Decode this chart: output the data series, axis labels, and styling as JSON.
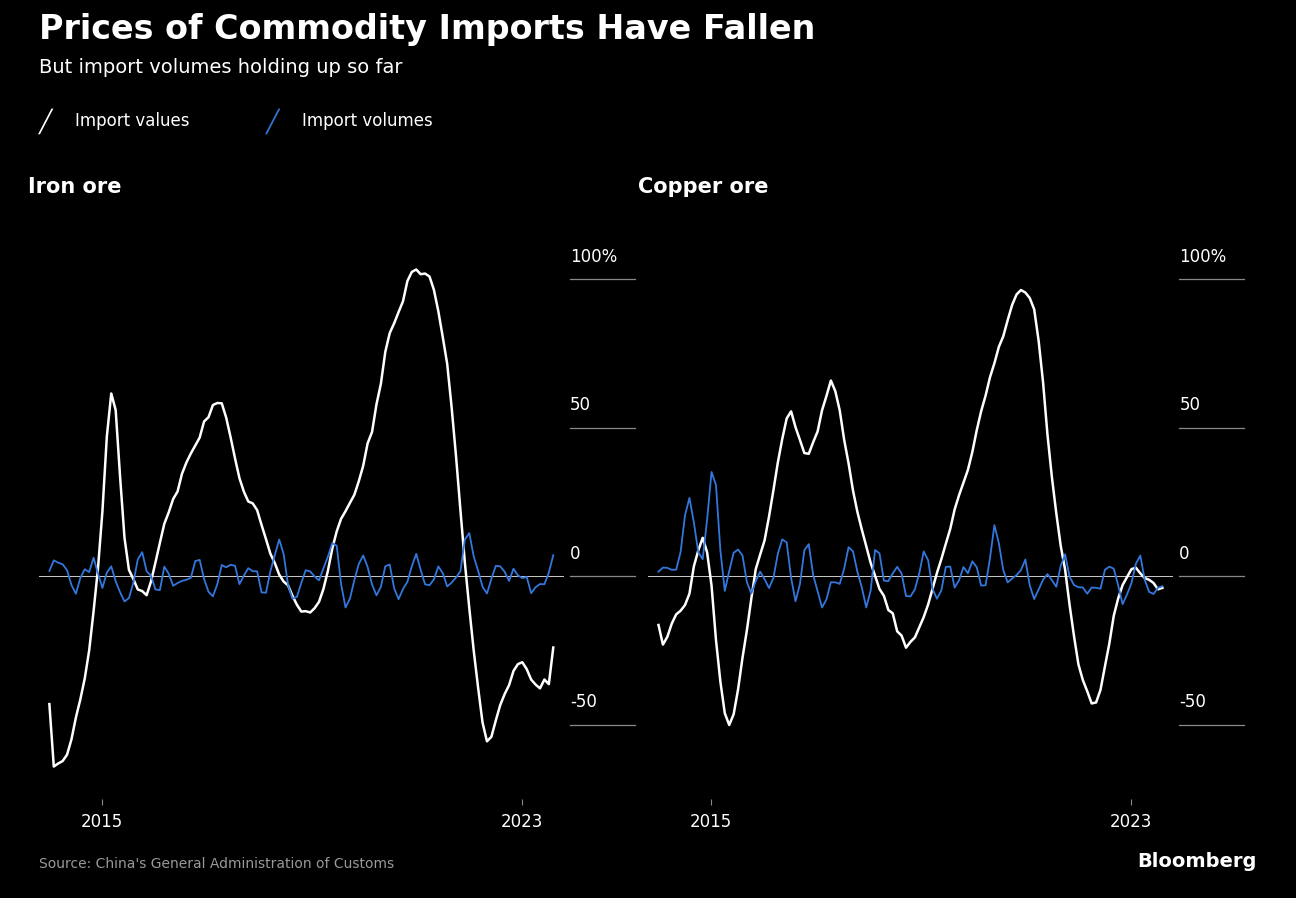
{
  "title": "Prices of Commodity Imports Have Fallen",
  "subtitle": "But import volumes holding up so far",
  "legend_values": "Import values",
  "legend_volumes": "Import volumes",
  "iron_ore_label": "Iron ore",
  "copper_ore_label": "Copper ore",
  "source": "Source: China's General Administration of Customs",
  "bloomberg": "Bloomberg",
  "background_color": "#000000",
  "text_color": "#ffffff",
  "values_color": "#ffffff",
  "volumes_color": "#3377dd",
  "yticks": [
    -50,
    0,
    50,
    100
  ],
  "ylim": [
    -75,
    120
  ],
  "xlim_start": 2013.8,
  "xlim_end": 2023.8,
  "title_fontsize": 24,
  "subtitle_fontsize": 14,
  "label_fontsize": 15,
  "tick_fontsize": 12,
  "source_fontsize": 10,
  "bloomberg_fontsize": 14
}
